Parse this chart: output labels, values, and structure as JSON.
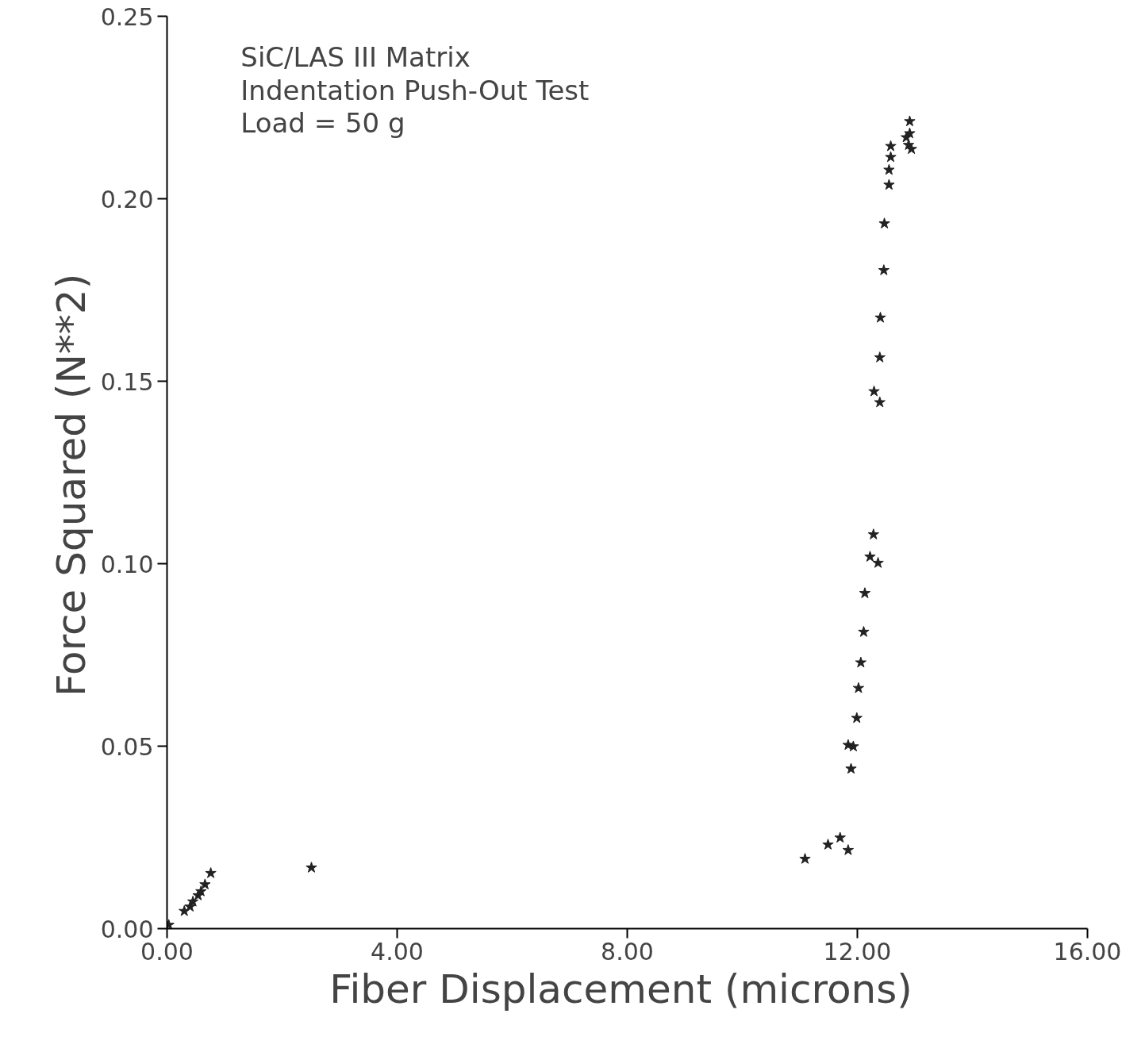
{
  "chart_data": {
    "type": "scatter",
    "xlabel": "Fiber Displacement  (microns)",
    "ylabel": "Force  Squared  (N**2)",
    "annotations": [
      "SiC/LAS III Matrix",
      "Indentation Push-Out Test",
      "Load  =  50  g"
    ],
    "x": [
      0.03,
      0.3,
      0.4,
      0.45,
      0.54,
      0.59,
      0.66,
      0.76,
      2.51,
      11.09,
      11.49,
      11.7,
      11.84,
      11.89,
      11.84,
      11.93,
      11.99,
      12.02,
      12.06,
      12.11,
      12.13,
      12.36,
      12.22,
      12.28,
      12.39,
      12.29,
      12.39,
      12.4,
      12.46,
      12.47,
      12.55,
      12.55,
      12.58,
      12.58,
      12.91,
      12.91,
      12.89,
      12.85,
      12.94
    ],
    "values": [
      0.001,
      0.0048,
      0.006,
      0.0074,
      0.0091,
      0.0102,
      0.0121,
      0.0152,
      0.0167,
      0.0191,
      0.023,
      0.0249,
      0.0215,
      0.0438,
      0.0503,
      0.0499,
      0.0577,
      0.0659,
      0.0729,
      0.0813,
      0.0919,
      0.1002,
      0.1019,
      0.108,
      0.1442,
      0.1472,
      0.1565,
      0.1674,
      0.1804,
      0.1932,
      0.2038,
      0.2079,
      0.2114,
      0.2144,
      0.2212,
      0.2179,
      0.2147,
      0.2168,
      0.2136
    ],
    "color": "#222222",
    "marker": "star",
    "grid": false,
    "xlim": [
      0,
      16
    ],
    "ylim": [
      0,
      0.25
    ],
    "xticks": [
      {
        "value": 0,
        "label": "0.00"
      },
      {
        "value": 4,
        "label": "4.00"
      },
      {
        "value": 8,
        "label": "8.00"
      },
      {
        "value": 12,
        "label": "12.00"
      },
      {
        "value": 16,
        "label": "16.00"
      }
    ],
    "yticks": [
      {
        "value": 0,
        "label": "0.00"
      },
      {
        "value": 0.05,
        "label": "0.05"
      },
      {
        "value": 0.1,
        "label": "0.10"
      },
      {
        "value": 0.15,
        "label": "0.15"
      },
      {
        "value": 0.2,
        "label": "0.20"
      },
      {
        "value": 0.25,
        "label": "0.25"
      }
    ]
  }
}
